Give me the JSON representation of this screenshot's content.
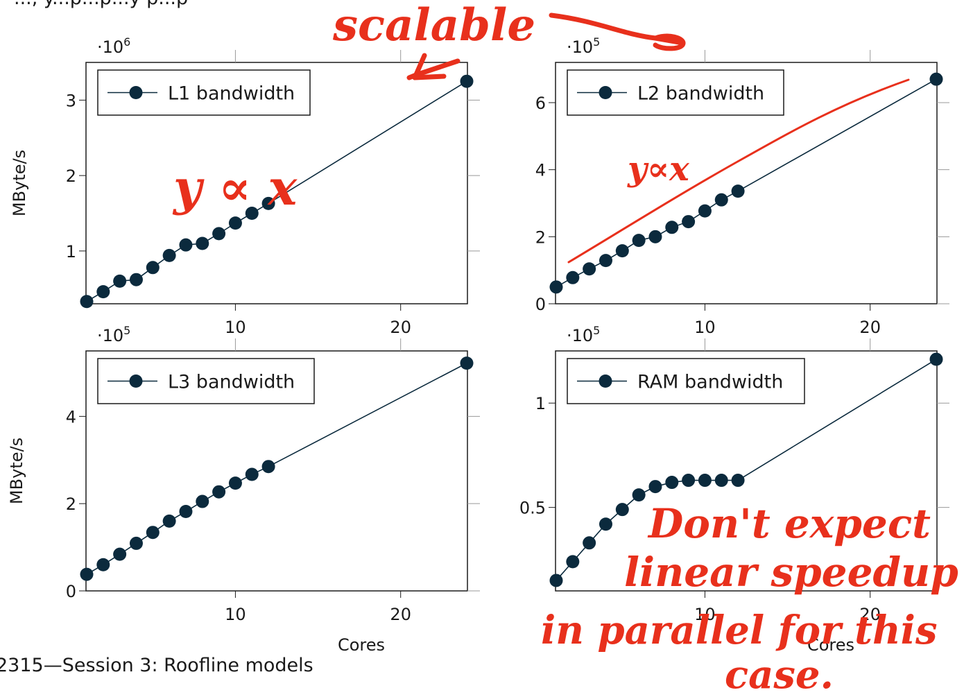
{
  "footer": {
    "text": "2315—Session 3: Roofline models"
  },
  "top_fragment": {
    "text": "..., y...p...p...y p...p"
  },
  "annotations": {
    "scalable": "scalable",
    "y_prop_x_left": "y ∝ x",
    "y_prop_x_right": "y∝x",
    "note_line1": "Don't expect",
    "note_line2": "linear speedup",
    "note_line3": "in parallel for this",
    "note_line4": "case."
  },
  "colors": {
    "series": "#0b2a3d",
    "ink": "#e8301c"
  },
  "chart_data": [
    {
      "type": "line",
      "panel": "top-left",
      "legend": "L1 bandwidth",
      "legend_placement": "top-left",
      "ylabel": "MByte/s",
      "xlabel": "",
      "multiplier": {
        "base": "·10",
        "exp": "6"
      },
      "xlim": [
        1,
        24
      ],
      "ylim": [
        0.3,
        3.5
      ],
      "xticks": [
        10,
        20
      ],
      "yticks": [
        1,
        2,
        3
      ],
      "series": [
        {
          "x": [
            1,
            2,
            3,
            4,
            5,
            6,
            7,
            8,
            9,
            10,
            11,
            12,
            24
          ],
          "y": [
            0.33,
            0.46,
            0.6,
            0.62,
            0.78,
            0.94,
            1.08,
            1.1,
            1.23,
            1.37,
            1.5,
            1.63,
            3.25
          ]
        }
      ]
    },
    {
      "type": "line",
      "panel": "top-right",
      "legend": "L2 bandwidth",
      "legend_placement": "top-left",
      "ylabel": "",
      "xlabel": "",
      "multiplier": {
        "base": "·10",
        "exp": "5"
      },
      "xlim": [
        1,
        24
      ],
      "ylim": [
        0,
        7.2
      ],
      "xticks": [
        10,
        20
      ],
      "yticks": [
        0,
        2,
        4,
        6
      ],
      "series": [
        {
          "x": [
            1,
            2,
            3,
            4,
            5,
            6,
            7,
            8,
            9,
            10,
            11,
            12,
            24
          ],
          "y": [
            0.5,
            0.78,
            1.04,
            1.29,
            1.58,
            1.89,
            2.0,
            2.28,
            2.45,
            2.77,
            3.1,
            3.36,
            6.7
          ]
        }
      ]
    },
    {
      "type": "line",
      "panel": "bottom-left",
      "legend": "L3 bandwidth",
      "legend_placement": "top-left",
      "ylabel": "MByte/s",
      "xlabel": "Cores",
      "multiplier": {
        "base": "·10",
        "exp": "5"
      },
      "xlim": [
        1,
        24
      ],
      "ylim": [
        0,
        5.5
      ],
      "xticks": [
        10,
        20
      ],
      "yticks": [
        0,
        2,
        4
      ],
      "series": [
        {
          "x": [
            1,
            2,
            3,
            4,
            5,
            6,
            7,
            8,
            9,
            10,
            11,
            12,
            24
          ],
          "y": [
            0.38,
            0.6,
            0.84,
            1.09,
            1.34,
            1.6,
            1.82,
            2.05,
            2.27,
            2.47,
            2.67,
            2.85,
            5.22
          ]
        }
      ]
    },
    {
      "type": "line",
      "panel": "bottom-right",
      "legend": "RAM bandwidth",
      "legend_placement": "top-left",
      "ylabel": "",
      "xlabel": "Cores",
      "multiplier": {
        "base": "·10",
        "exp": "5"
      },
      "xlim": [
        1,
        24
      ],
      "ylim": [
        0.1,
        1.25
      ],
      "xticks": [
        10,
        20
      ],
      "yticks": [
        0.5,
        1
      ],
      "ytick_labels": [
        "0.5",
        "1"
      ],
      "series": [
        {
          "x": [
            1,
            2,
            3,
            4,
            5,
            6,
            7,
            8,
            9,
            10,
            11,
            12,
            24
          ],
          "y": [
            0.15,
            0.24,
            0.33,
            0.42,
            0.49,
            0.56,
            0.6,
            0.62,
            0.63,
            0.63,
            0.63,
            0.63,
            1.21
          ]
        }
      ]
    }
  ]
}
